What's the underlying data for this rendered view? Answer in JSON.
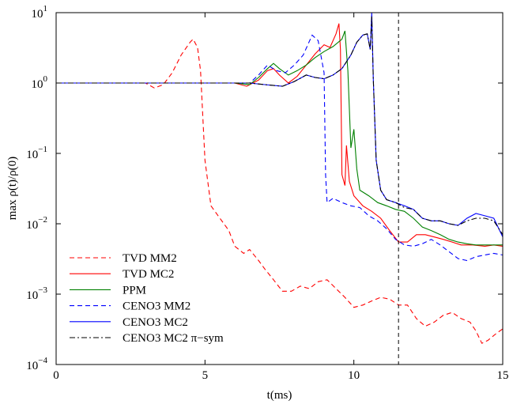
{
  "chart_data": {
    "type": "line",
    "xlabel": "t(ms)",
    "ylabel": "max ρ(t)/ρ(0)",
    "xlim": [
      0,
      15
    ],
    "ylim": [
      0.0001,
      10
    ],
    "yscale": "log",
    "grid": false,
    "legend_position": "bottom-left",
    "x_ticks": [
      {
        "value": 0,
        "label": "0"
      },
      {
        "value": 5,
        "label": "5"
      },
      {
        "value": 10,
        "label": "10"
      },
      {
        "value": 15,
        "label": "15"
      }
    ],
    "y_ticks": [
      {
        "value": 0.0001,
        "base": "10",
        "exp": "−4"
      },
      {
        "value": 0.001,
        "base": "10",
        "exp": "−3"
      },
      {
        "value": 0.01,
        "base": "10",
        "exp": "−2"
      },
      {
        "value": 0.1,
        "base": "10",
        "exp": "−1"
      },
      {
        "value": 1,
        "base": "10",
        "exp": "0"
      },
      {
        "value": 10,
        "base": "10",
        "exp": "1"
      }
    ],
    "reference_line": {
      "x": 11.5,
      "style": "dashed",
      "color": "#000000"
    },
    "series": [
      {
        "name": "TVD MM2",
        "color": "#ff0000",
        "dash": "dashed",
        "points": [
          [
            0,
            1
          ],
          [
            3,
            1
          ],
          [
            3.3,
            0.85
          ],
          [
            3.6,
            0.95
          ],
          [
            3.9,
            1.4
          ],
          [
            4.2,
            2.5
          ],
          [
            4.5,
            3.8
          ],
          [
            4.6,
            4.2
          ],
          [
            4.75,
            3.2
          ],
          [
            4.85,
            1.5
          ],
          [
            5.0,
            0.08
          ],
          [
            5.2,
            0.018
          ],
          [
            5.5,
            0.012
          ],
          [
            5.8,
            0.008
          ],
          [
            6.0,
            0.0048
          ],
          [
            6.3,
            0.0038
          ],
          [
            6.5,
            0.0043
          ],
          [
            6.8,
            0.003
          ],
          [
            7.0,
            0.0023
          ],
          [
            7.3,
            0.0016
          ],
          [
            7.6,
            0.0011
          ],
          [
            7.9,
            0.0011
          ],
          [
            8.2,
            0.0013
          ],
          [
            8.5,
            0.0012
          ],
          [
            8.8,
            0.0015
          ],
          [
            9.1,
            0.0016
          ],
          [
            9.4,
            0.0012
          ],
          [
            9.7,
            0.0009
          ],
          [
            10.0,
            0.00065
          ],
          [
            10.3,
            0.0007
          ],
          [
            10.6,
            0.0008
          ],
          [
            10.9,
            0.0009
          ],
          [
            11.2,
            0.00085
          ],
          [
            11.5,
            0.0007
          ],
          [
            11.8,
            0.0007
          ],
          [
            12.1,
            0.00045
          ],
          [
            12.4,
            0.00035
          ],
          [
            12.7,
            0.0004
          ],
          [
            13.0,
            0.0005
          ],
          [
            13.3,
            0.00055
          ],
          [
            13.6,
            0.00045
          ],
          [
            13.9,
            0.0004
          ],
          [
            14.1,
            0.0003
          ],
          [
            14.3,
            0.0002
          ],
          [
            14.5,
            0.00022
          ],
          [
            14.8,
            0.00028
          ],
          [
            15.0,
            0.00032
          ]
        ]
      },
      {
        "name": "TVD MC2",
        "color": "#ff0000",
        "dash": "solid",
        "points": [
          [
            0,
            1
          ],
          [
            6.0,
            1
          ],
          [
            6.4,
            0.9
          ],
          [
            6.8,
            1.1
          ],
          [
            7.1,
            1.5
          ],
          [
            7.3,
            1.6
          ],
          [
            7.5,
            1.3
          ],
          [
            7.8,
            1.0
          ],
          [
            8.1,
            1.25
          ],
          [
            8.4,
            1.8
          ],
          [
            8.7,
            2.6
          ],
          [
            9.0,
            3.5
          ],
          [
            9.2,
            3.2
          ],
          [
            9.4,
            5.0
          ],
          [
            9.5,
            7.0
          ],
          [
            9.55,
            3.0
          ],
          [
            9.6,
            0.05
          ],
          [
            9.7,
            0.035
          ],
          [
            9.75,
            0.13
          ],
          [
            9.85,
            0.04
          ],
          [
            10.0,
            0.025
          ],
          [
            10.3,
            0.018
          ],
          [
            10.6,
            0.015
          ],
          [
            10.9,
            0.012
          ],
          [
            11.2,
            0.008
          ],
          [
            11.5,
            0.0055
          ],
          [
            11.8,
            0.0055
          ],
          [
            12.1,
            0.007
          ],
          [
            12.4,
            0.007
          ],
          [
            12.7,
            0.0065
          ],
          [
            13.0,
            0.006
          ],
          [
            13.3,
            0.0055
          ],
          [
            13.6,
            0.005
          ],
          [
            14.0,
            0.005
          ],
          [
            14.4,
            0.0048
          ],
          [
            14.7,
            0.005
          ],
          [
            15.0,
            0.0048
          ]
        ]
      },
      {
        "name": "PPM",
        "color": "#008000",
        "dash": "solid",
        "points": [
          [
            0,
            1
          ],
          [
            6.0,
            1
          ],
          [
            6.5,
            0.95
          ],
          [
            6.8,
            1.2
          ],
          [
            7.1,
            1.6
          ],
          [
            7.3,
            1.9
          ],
          [
            7.5,
            1.6
          ],
          [
            7.8,
            1.3
          ],
          [
            8.1,
            1.5
          ],
          [
            8.4,
            1.8
          ],
          [
            8.7,
            2.3
          ],
          [
            9.0,
            2.8
          ],
          [
            9.3,
            3.3
          ],
          [
            9.6,
            4.2
          ],
          [
            9.7,
            5.5
          ],
          [
            9.8,
            1.5
          ],
          [
            9.9,
            0.12
          ],
          [
            10.0,
            0.22
          ],
          [
            10.1,
            0.06
          ],
          [
            10.2,
            0.03
          ],
          [
            10.5,
            0.025
          ],
          [
            10.8,
            0.02
          ],
          [
            11.1,
            0.018
          ],
          [
            11.4,
            0.016
          ],
          [
            11.7,
            0.015
          ],
          [
            12.0,
            0.012
          ],
          [
            12.3,
            0.009
          ],
          [
            12.6,
            0.008
          ],
          [
            12.9,
            0.007
          ],
          [
            13.2,
            0.006
          ],
          [
            13.5,
            0.0055
          ],
          [
            13.8,
            0.0052
          ],
          [
            14.1,
            0.005
          ],
          [
            14.5,
            0.005
          ],
          [
            15.0,
            0.005
          ]
        ]
      },
      {
        "name": "CENO3 MM2",
        "color": "#0000ff",
        "dash": "dashed",
        "points": [
          [
            0,
            1
          ],
          [
            6.0,
            1
          ],
          [
            6.5,
            1.0
          ],
          [
            6.8,
            1.3
          ],
          [
            7.1,
            1.8
          ],
          [
            7.4,
            1.5
          ],
          [
            7.7,
            1.4
          ],
          [
            8.0,
            1.8
          ],
          [
            8.3,
            2.5
          ],
          [
            8.6,
            4.8
          ],
          [
            8.8,
            4.0
          ],
          [
            9.0,
            1.4
          ],
          [
            9.05,
            0.05
          ],
          [
            9.1,
            0.02
          ],
          [
            9.3,
            0.023
          ],
          [
            9.6,
            0.02
          ],
          [
            9.9,
            0.018
          ],
          [
            10.2,
            0.017
          ],
          [
            10.5,
            0.013
          ],
          [
            10.8,
            0.011
          ],
          [
            11.1,
            0.0085
          ],
          [
            11.4,
            0.006
          ],
          [
            11.7,
            0.005
          ],
          [
            12.0,
            0.0048
          ],
          [
            12.3,
            0.0052
          ],
          [
            12.6,
            0.006
          ],
          [
            12.9,
            0.005
          ],
          [
            13.2,
            0.004
          ],
          [
            13.5,
            0.0032
          ],
          [
            13.8,
            0.003
          ],
          [
            14.1,
            0.0034
          ],
          [
            14.4,
            0.0036
          ],
          [
            14.7,
            0.0038
          ],
          [
            15.0,
            0.0036
          ]
        ]
      },
      {
        "name": "CENO3 MC2",
        "color": "#0000ff",
        "dash": "solid",
        "points": [
          [
            0,
            1
          ],
          [
            6.5,
            1.0
          ],
          [
            7.0,
            0.95
          ],
          [
            7.6,
            0.9
          ],
          [
            8.0,
            1.05
          ],
          [
            8.4,
            1.3
          ],
          [
            8.7,
            1.2
          ],
          [
            9.0,
            1.15
          ],
          [
            9.3,
            1.3
          ],
          [
            9.6,
            1.6
          ],
          [
            9.9,
            2.5
          ],
          [
            10.1,
            3.8
          ],
          [
            10.3,
            4.8
          ],
          [
            10.45,
            5.0
          ],
          [
            10.55,
            3.0
          ],
          [
            10.6,
            10.0
          ],
          [
            10.65,
            1.2
          ],
          [
            10.75,
            0.08
          ],
          [
            10.9,
            0.03
          ],
          [
            11.1,
            0.022
          ],
          [
            11.4,
            0.02
          ],
          [
            11.7,
            0.018
          ],
          [
            12.0,
            0.016
          ],
          [
            12.3,
            0.012
          ],
          [
            12.6,
            0.011
          ],
          [
            12.9,
            0.011
          ],
          [
            13.2,
            0.01
          ],
          [
            13.5,
            0.0095
          ],
          [
            13.8,
            0.012
          ],
          [
            14.1,
            0.014
          ],
          [
            14.4,
            0.013
          ],
          [
            14.7,
            0.012
          ],
          [
            15.0,
            0.0065
          ]
        ]
      },
      {
        "name": "CENO3 MC2 π−sym",
        "color": "#000000",
        "dash": "dashdot",
        "points": [
          [
            0,
            1
          ],
          [
            6.5,
            1.0
          ],
          [
            7.0,
            0.95
          ],
          [
            7.6,
            0.9
          ],
          [
            8.0,
            1.05
          ],
          [
            8.4,
            1.3
          ],
          [
            8.7,
            1.2
          ],
          [
            9.0,
            1.15
          ],
          [
            9.3,
            1.3
          ],
          [
            9.6,
            1.6
          ],
          [
            9.9,
            2.5
          ],
          [
            10.1,
            3.8
          ],
          [
            10.3,
            4.8
          ],
          [
            10.45,
            5.0
          ],
          [
            10.55,
            3.0
          ],
          [
            10.6,
            9.0
          ],
          [
            10.65,
            1.2
          ],
          [
            10.75,
            0.08
          ],
          [
            10.9,
            0.03
          ],
          [
            11.1,
            0.022
          ],
          [
            11.4,
            0.02
          ],
          [
            11.7,
            0.017
          ],
          [
            12.0,
            0.016
          ],
          [
            12.3,
            0.012
          ],
          [
            12.6,
            0.011
          ],
          [
            12.9,
            0.011
          ],
          [
            13.2,
            0.01
          ],
          [
            13.5,
            0.0095
          ],
          [
            13.8,
            0.011
          ],
          [
            14.1,
            0.012
          ],
          [
            14.4,
            0.012
          ],
          [
            14.7,
            0.011
          ],
          [
            15.0,
            0.007
          ]
        ]
      }
    ]
  }
}
